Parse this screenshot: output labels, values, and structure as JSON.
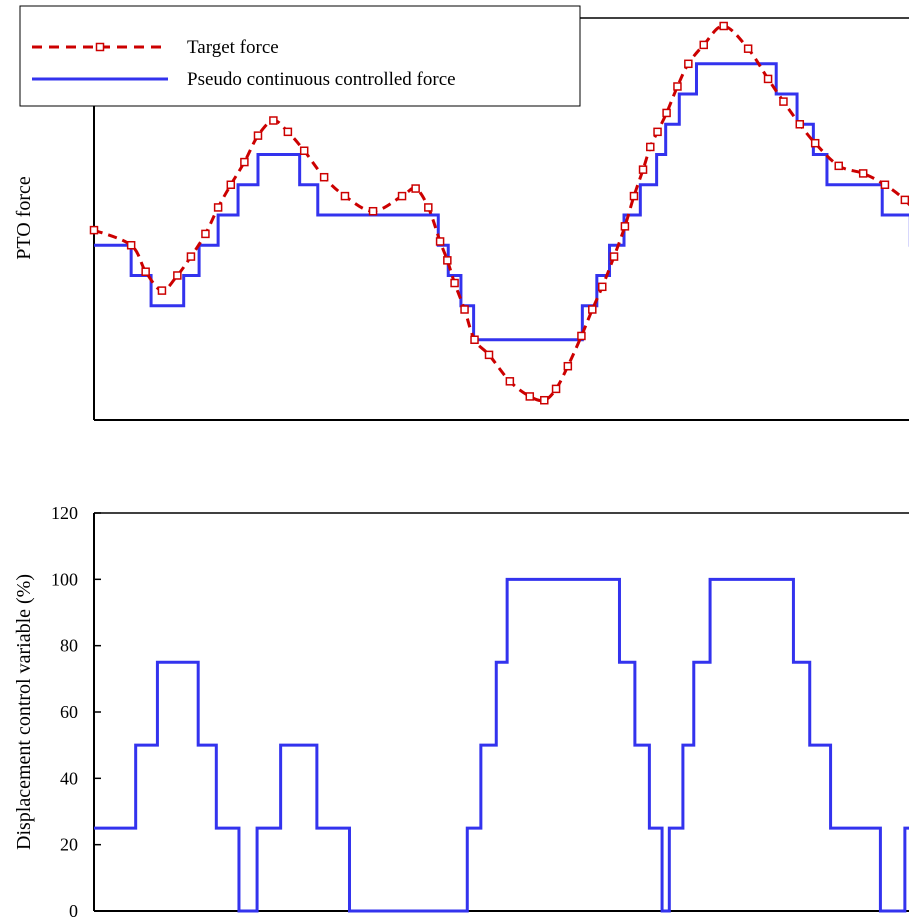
{
  "chart_data": [
    {
      "type": "line",
      "title": "",
      "xlabel": "",
      "ylabel": "PTO force",
      "x_ticks_shown": false,
      "y_ticks_shown": false,
      "x_range": [
        0,
        1
      ],
      "y_range": [
        0,
        1
      ],
      "grid": false,
      "legend_position": "top-left",
      "colors": {
        "target": "#cc0000",
        "controlled": "#3333ee"
      },
      "series": [
        {
          "name": "Target force",
          "style": "dashed-with-square-markers",
          "color": "#cc0000",
          "points": [
            [
              0.0,
              0.46
            ],
            [
              0.041,
              0.42
            ],
            [
              0.057,
              0.35
            ],
            [
              0.075,
              0.3
            ],
            [
              0.092,
              0.34
            ],
            [
              0.107,
              0.39
            ],
            [
              0.123,
              0.45
            ],
            [
              0.137,
              0.52
            ],
            [
              0.151,
              0.58
            ],
            [
              0.166,
              0.64
            ],
            [
              0.181,
              0.71
            ],
            [
              0.198,
              0.75
            ],
            [
              0.214,
              0.72
            ],
            [
              0.232,
              0.67
            ],
            [
              0.254,
              0.6
            ],
            [
              0.277,
              0.55
            ],
            [
              0.308,
              0.51
            ],
            [
              0.34,
              0.55
            ],
            [
              0.355,
              0.57
            ],
            [
              0.369,
              0.52
            ],
            [
              0.382,
              0.43
            ],
            [
              0.39,
              0.38
            ],
            [
              0.398,
              0.32
            ],
            [
              0.409,
              0.25
            ],
            [
              0.42,
              0.17
            ],
            [
              0.436,
              0.13
            ],
            [
              0.459,
              0.06
            ],
            [
              0.481,
              0.02
            ],
            [
              0.497,
              0.01
            ],
            [
              0.51,
              0.04
            ],
            [
              0.523,
              0.1
            ],
            [
              0.538,
              0.18
            ],
            [
              0.55,
              0.25
            ],
            [
              0.561,
              0.31
            ],
            [
              0.574,
              0.39
            ],
            [
              0.586,
              0.47
            ],
            [
              0.596,
              0.55
            ],
            [
              0.606,
              0.62
            ],
            [
              0.614,
              0.68
            ],
            [
              0.622,
              0.72
            ],
            [
              0.632,
              0.77
            ],
            [
              0.644,
              0.84
            ],
            [
              0.656,
              0.9
            ],
            [
              0.673,
              0.95
            ],
            [
              0.695,
              1.0
            ],
            [
              0.722,
              0.94
            ],
            [
              0.744,
              0.86
            ],
            [
              0.761,
              0.8
            ],
            [
              0.779,
              0.74
            ],
            [
              0.796,
              0.69
            ],
            [
              0.822,
              0.63
            ],
            [
              0.849,
              0.61
            ],
            [
              0.873,
              0.58
            ],
            [
              0.895,
              0.54
            ],
            [
              0.919,
              0.48
            ],
            [
              0.945,
              0.46
            ]
          ]
        },
        {
          "name": "Pseudo continuous controlled force",
          "style": "solid-step",
          "color": "#3333ee",
          "steps": [
            [
              0.0,
              0.42
            ],
            [
              0.041,
              0.34
            ],
            [
              0.063,
              0.26
            ],
            [
              0.099,
              0.34
            ],
            [
              0.116,
              0.42
            ],
            [
              0.137,
              0.5
            ],
            [
              0.159,
              0.58
            ],
            [
              0.181,
              0.66
            ],
            [
              0.227,
              0.58
            ],
            [
              0.247,
              0.5
            ],
            [
              0.38,
              0.42
            ],
            [
              0.391,
              0.34
            ],
            [
              0.405,
              0.26
            ],
            [
              0.419,
              0.17
            ],
            [
              0.539,
              0.26
            ],
            [
              0.555,
              0.34
            ],
            [
              0.569,
              0.42
            ],
            [
              0.585,
              0.5
            ],
            [
              0.603,
              0.58
            ],
            [
              0.621,
              0.66
            ],
            [
              0.631,
              0.74
            ],
            [
              0.646,
              0.82
            ],
            [
              0.665,
              0.9
            ],
            [
              0.753,
              0.82
            ],
            [
              0.776,
              0.74
            ],
            [
              0.794,
              0.66
            ],
            [
              0.809,
              0.58
            ],
            [
              0.87,
              0.5
            ],
            [
              0.901,
              0.42
            ]
          ],
          "x_end": 0.945
        }
      ]
    },
    {
      "type": "line",
      "title": "",
      "xlabel": "",
      "ylabel": "Displacement control variable (%)",
      "x_ticks_shown": false,
      "x_range": [
        0,
        1
      ],
      "ylim": [
        0,
        120
      ],
      "y_ticks": [
        "0",
        "20",
        "40",
        "60",
        "80",
        "100",
        "120"
      ],
      "grid": false,
      "colors": {
        "line": "#3333ee"
      },
      "series": [
        {
          "style": "solid-step",
          "color": "#3333ee",
          "steps": [
            [
              0.0,
              25
            ],
            [
              0.046,
              50
            ],
            [
              0.07,
              75
            ],
            [
              0.115,
              50
            ],
            [
              0.135,
              25
            ],
            [
              0.16,
              0
            ],
            [
              0.18,
              25
            ],
            [
              0.206,
              50
            ],
            [
              0.246,
              25
            ],
            [
              0.282,
              0
            ],
            [
              0.412,
              25
            ],
            [
              0.427,
              50
            ],
            [
              0.444,
              75
            ],
            [
              0.456,
              100
            ],
            [
              0.58,
              75
            ],
            [
              0.597,
              50
            ],
            [
              0.613,
              25
            ],
            [
              0.627,
              0
            ],
            [
              0.635,
              25
            ],
            [
              0.65,
              50
            ],
            [
              0.662,
              75
            ],
            [
              0.68,
              100
            ],
            [
              0.772,
              75
            ],
            [
              0.79,
              50
            ],
            [
              0.813,
              25
            ],
            [
              0.868,
              0
            ],
            [
              0.895,
              25
            ]
          ],
          "x_end": 0.945
        }
      ]
    }
  ]
}
